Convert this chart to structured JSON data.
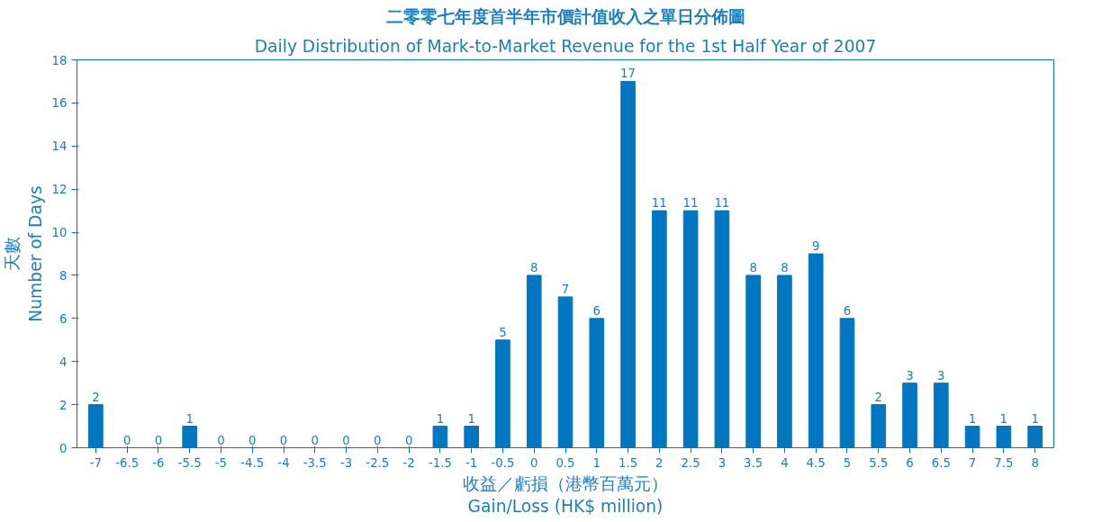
{
  "chart_data": {
    "type": "bar",
    "title": "二零零七年度首半年市價計值收入之單日分佈圖",
    "subtitle": "Daily Distribution of Mark-to-Market Revenue for the 1st Half Year of 2007",
    "xlabel": "收益／虧損（港幣百萬元）\nGain/Loss (HK$ million)",
    "ylabel": "天數\nNumber of Days",
    "categories": [
      "-7",
      "-6.5",
      "-6",
      "-5.5",
      "-5",
      "-4.5",
      "-4",
      "-3.5",
      "-3",
      "-2.5",
      "-2",
      "-1.5",
      "-1",
      "-0.5",
      "0",
      "0.5",
      "1",
      "1.5",
      "2",
      "2.5",
      "3",
      "3.5",
      "4",
      "4.5",
      "5",
      "5.5",
      "6",
      "6.5",
      "7",
      "7.5",
      "8"
    ],
    "values": [
      2,
      0,
      0,
      1,
      0,
      0,
      0,
      0,
      0,
      0,
      0,
      1,
      1,
      5,
      8,
      7,
      6,
      17,
      11,
      11,
      11,
      8,
      8,
      9,
      6,
      2,
      3,
      3,
      1,
      1,
      1
    ],
    "color": "#0077c0",
    "ylim": [
      0,
      18
    ],
    "yticks": [
      0,
      2,
      4,
      6,
      8,
      10,
      12,
      14,
      16,
      18
    ],
    "data_labels": true,
    "grid": false
  }
}
